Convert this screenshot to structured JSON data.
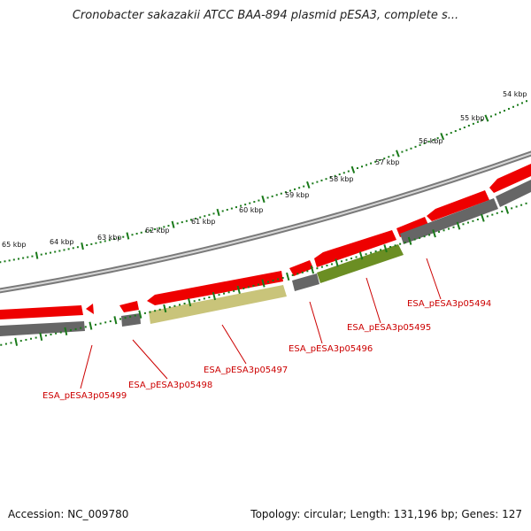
{
  "title": "Cronobacter sakazakii ATCC BAA-894 plasmid pESA3, complete s...",
  "footer": {
    "accession": "Accession: NC_009780",
    "summary": "Topology: circular; Length: 131,196 bp; Genes: 127"
  },
  "colors": {
    "gene_red": "#ee0000",
    "gene_gray": "#666666",
    "gene_olive": "#6b8e23",
    "gene_khaki": "#c9c47a",
    "backbone": "#9a9a9a",
    "tick": "#1a7a1a",
    "label": "#cc0000"
  },
  "kbp_ticks": [
    "54 kbp",
    "55 kbp",
    "56 kbp",
    "57 kbp",
    "58 kbp",
    "59 kbp",
    "60 kbp",
    "61 kbp",
    "62 kbp",
    "63 kbp",
    "64 kbp",
    "65 kbp"
  ],
  "gene_labels": [
    "ESA_pESA3p05494",
    "ESA_pESA3p05495",
    "ESA_pESA3p05496",
    "ESA_pESA3p05497",
    "ESA_pESA3p05498",
    "ESA_pESA3p05499"
  ]
}
